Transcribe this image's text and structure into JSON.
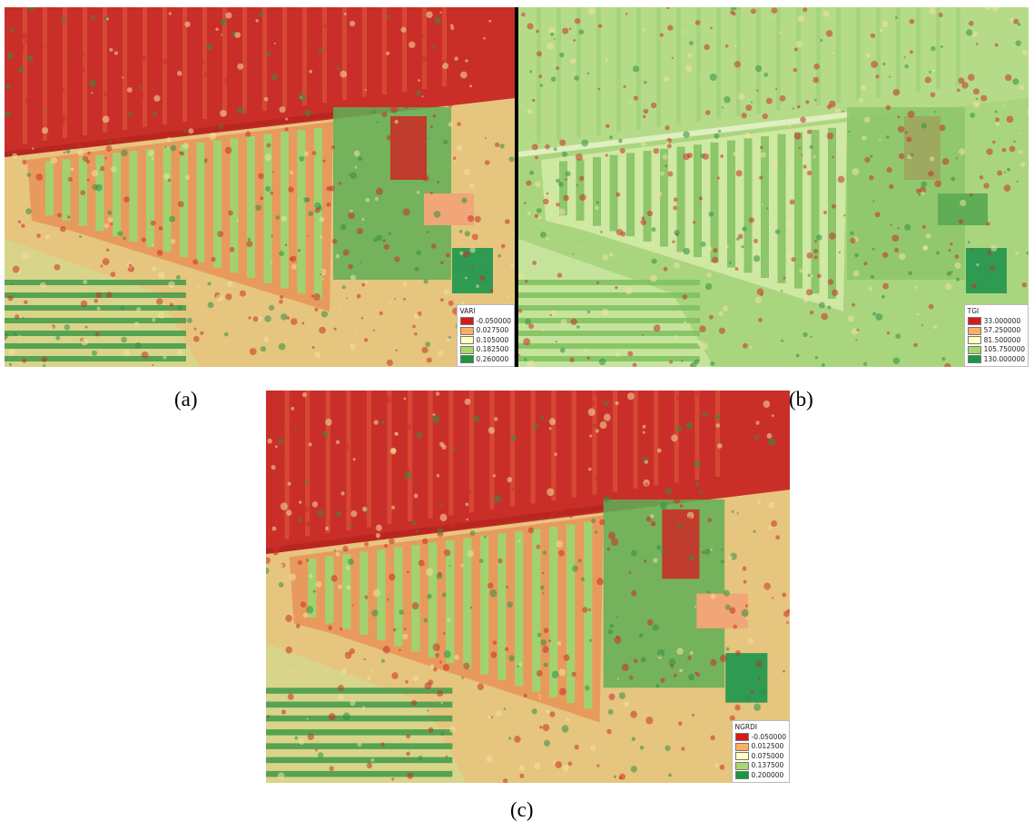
{
  "panels": [
    {
      "label": "(a)",
      "legend": {
        "title": "VARI",
        "entries": [
          "-0.050000",
          "0.027500",
          "0.105000",
          "0.182500",
          "0.260000"
        ]
      }
    },
    {
      "label": "(b)",
      "legend": {
        "title": "TGI",
        "entries": [
          "33.000000",
          "57.250000",
          "81.500000",
          "105.750000",
          "130.000000"
        ]
      }
    },
    {
      "label": "(c)",
      "legend": {
        "title": "NGRDI",
        "entries": [
          "-0.050000",
          "0.012500",
          "0.075000",
          "0.137500",
          "0.200000"
        ]
      }
    }
  ]
}
